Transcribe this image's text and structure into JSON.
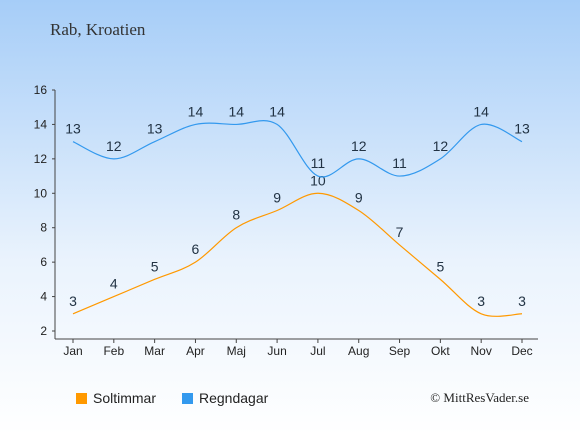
{
  "title": "Rab, Kroatien",
  "credit": "© MittResVader.se",
  "chart_data": {
    "type": "line",
    "categories": [
      "Jan",
      "Feb",
      "Mar",
      "Apr",
      "Maj",
      "Jun",
      "Jul",
      "Aug",
      "Sep",
      "Okt",
      "Nov",
      "Dec"
    ],
    "ylim": [
      2,
      16
    ],
    "yticks": [
      2,
      4,
      6,
      8,
      10,
      12,
      14,
      16
    ],
    "grid": false,
    "legend_position": "bottom-left",
    "series": [
      {
        "name": "Soltimmar",
        "color": "#ff9900",
        "values": [
          3,
          4,
          5,
          6,
          8,
          9,
          10,
          9,
          7,
          5,
          3,
          3
        ]
      },
      {
        "name": "Regndagar",
        "color": "#3399ee",
        "values": [
          13,
          12,
          13,
          14,
          14,
          14,
          11,
          12,
          11,
          12,
          14,
          13
        ]
      }
    ]
  }
}
